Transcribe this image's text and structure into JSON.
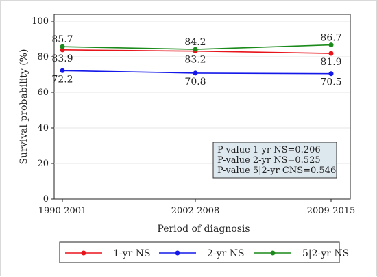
{
  "chart_data": {
    "type": "line",
    "categories": [
      "1990-2001",
      "2002-2008",
      "2009-2015"
    ],
    "series": [
      {
        "name": "1-yr NS",
        "values": [
          83.9,
          83.2,
          81.9
        ],
        "color": "#e8141b"
      },
      {
        "name": "2-yr NS",
        "values": [
          72.2,
          70.8,
          70.5
        ],
        "color": "#1418e8"
      },
      {
        "name": "5|2-yr NS",
        "values": [
          85.7,
          84.2,
          86.7
        ],
        "color": "#1a8a1a"
      }
    ],
    "xlabel": "Period of diagnosis",
    "ylabel": "Survival probability (%)",
    "ylim": [
      0,
      100
    ],
    "yticks": [
      0,
      20,
      40,
      60,
      80,
      100
    ],
    "grid": true,
    "annotation": [
      "P-value 1-yr NS=0.206",
      "P-value 2-yr NS=0.525",
      "P-value 5|2-yr CNS=0.546"
    ],
    "legend_position": "bottom",
    "label_positions": [
      "below",
      "below",
      "above"
    ]
  }
}
